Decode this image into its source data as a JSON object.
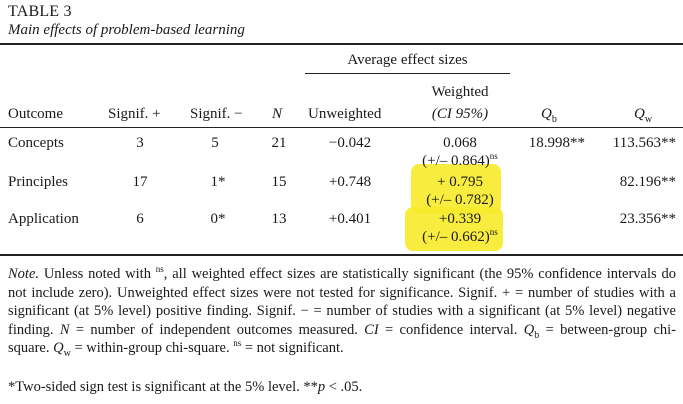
{
  "table": {
    "label": "TABLE 3",
    "caption": "Main effects of problem-based learning",
    "spanner": "Average effect sizes",
    "headers": {
      "outcome": "Outcome",
      "signif_plus": "Signif. +",
      "signif_minus": "Signif. −",
      "n": "N",
      "unweighted": "Unweighted",
      "weighted_line1": "Weighted",
      "weighted_line2": "(CI 95%)",
      "qb": "Q",
      "qb_sub": "b",
      "qw": "Q",
      "qw_sub": "w"
    },
    "rows": [
      {
        "outcome": "Concepts",
        "signif_plus": "3",
        "signif_minus": "5",
        "n": "21",
        "unweighted": "−0.042",
        "weighted": "0.068",
        "ci": "(+/– 0.864)",
        "ci_sup": "ns",
        "qb": "18.998**",
        "qw": "113.563**"
      },
      {
        "outcome": "Principles",
        "signif_plus": "17",
        "signif_minus": "1*",
        "n": "15",
        "unweighted": "+0.748",
        "weighted": "+ 0.795",
        "ci": "(+/– 0.782)",
        "ci_sup": "",
        "qb": "",
        "qw": "82.196**"
      },
      {
        "outcome": "Application",
        "signif_plus": "6",
        "signif_minus": "0*",
        "n": "13",
        "unweighted": "+0.401",
        "weighted": "+0.339",
        "ci": "(+/– 0.662)",
        "ci_sup": "ns",
        "qb": "",
        "qw": "23.356**"
      }
    ],
    "note": {
      "lead": "Note.",
      "t1": " Unless noted with ",
      "ns": "ns",
      "t2": ", all weighted effect sizes are statistically significant (the 95% confidence intervals do not include zero). Unweighted effect sizes were not tested for significance. Signif. + = number of studies with a significant (at 5% level) positive finding. Signif. − = number of studies with a significant (at 5% level) negative finding. ",
      "n_italic": "N",
      "t3": " = number of independent outcomes measured. ",
      "ci_italic": "CI",
      "t4": " = confidence interval. ",
      "qb_italic": "Q",
      "qb_sub": "b",
      "t5": " = between-group chi-square. ",
      "qw_italic": "Q",
      "qw_sub": "w",
      "t6": " = within-group chi-square. ",
      "ns2": "ns",
      "t7": " = not significant."
    },
    "footnote": {
      "t1": "*Two-sided sign test is significant at the 5% level. **",
      "p_italic": "p",
      "t2": " < .05."
    },
    "highlight_color": "#f7ea2a"
  }
}
